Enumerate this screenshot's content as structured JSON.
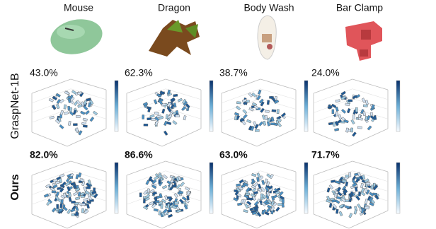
{
  "columns": [
    "Mouse",
    "Dragon",
    "Body Wash",
    "Bar Clamp"
  ],
  "rows": [
    {
      "label": "GraspNet-1B",
      "scores": [
        "43.0%",
        "62.3%",
        "38.7%",
        "24.0%"
      ]
    },
    {
      "label": "Ours",
      "scores": [
        "82.0%",
        "86.6%",
        "63.0%",
        "71.7%"
      ]
    }
  ]
}
